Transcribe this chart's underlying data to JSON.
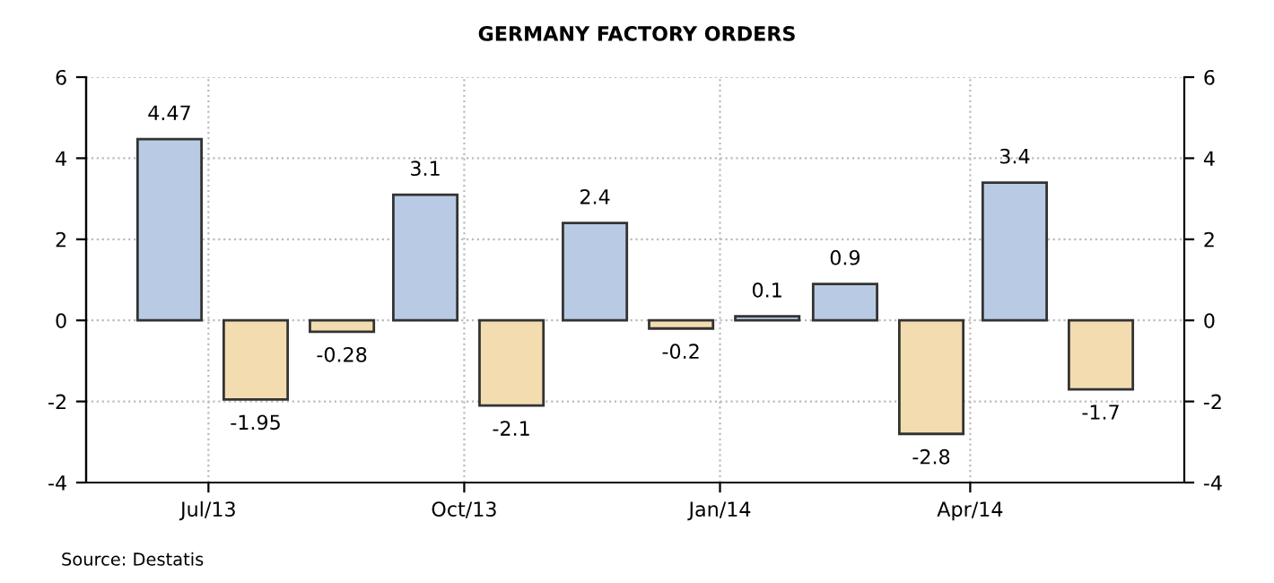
{
  "chart_data": {
    "type": "bar",
    "title": "GERMANY FACTORY ORDERS",
    "x": [
      "2013-07-01",
      "2013-08-01",
      "2013-09-01",
      "2013-10-01",
      "2013-11-01",
      "2013-12-01",
      "2014-01-01",
      "2014-02-01",
      "2014-03-01",
      "2014-04-01",
      "2014-05-01",
      "2014-06-01"
    ],
    "values": [
      4.47,
      -1.95,
      -0.28,
      3.1,
      -2.1,
      2.4,
      -0.2,
      0.1,
      0.9,
      -2.8,
      3.4,
      -1.7
    ],
    "colors": [
      "#b9cbe4",
      "#f3dcb0",
      "#f3dcb0",
      "#b9cbe4",
      "#f3dcb0",
      "#b9cbe4",
      "#f3dcb0",
      "#b9cbe4",
      "#b9cbe4",
      "#f3dcb0",
      "#b9cbe4",
      "#f3dcb0"
    ],
    "data_labels": true,
    "xlim": [
      "2013-06-01",
      "2014-07-01"
    ],
    "xticks": [
      {
        "value": "2013-07-15",
        "label": "Jul/13"
      },
      {
        "value": "2013-10-15",
        "label": "Oct/13"
      },
      {
        "value": "2014-01-15",
        "label": "Jan/14"
      },
      {
        "value": "2014-04-15",
        "label": "Apr/14"
      }
    ],
    "ylim": [
      -4,
      6
    ],
    "yticks": [
      -4,
      -2,
      0,
      2,
      4,
      6
    ],
    "y2lim": [
      -4,
      6
    ],
    "y2ticks": [
      -4,
      -2,
      0,
      2,
      4,
      6
    ],
    "grid": true,
    "annotations": [
      "Source: Destatis"
    ]
  }
}
